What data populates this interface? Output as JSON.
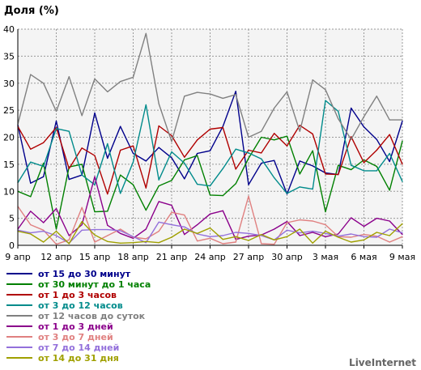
{
  "chart_data": {
    "type": "line",
    "title": "Доля (%)",
    "ylim": [
      0,
      40
    ],
    "yticks": [
      0,
      5,
      10,
      15,
      20,
      25,
      30,
      35,
      40
    ],
    "x_tick_labels": [
      {
        "i": 0,
        "label": "9 апр"
      },
      {
        "i": 3,
        "label": "12 апр"
      },
      {
        "i": 6,
        "label": "15 апр"
      },
      {
        "i": 9,
        "label": "18 апр"
      },
      {
        "i": 12,
        "label": "21 апр"
      },
      {
        "i": 15,
        "label": "24 апр"
      },
      {
        "i": 18,
        "label": "27 апр"
      },
      {
        "i": 21,
        "label": "30 апр"
      },
      {
        "i": 24,
        "label": "3 мая"
      },
      {
        "i": 27,
        "label": "6 мая"
      },
      {
        "i": 30,
        "label": "9 мая"
      }
    ],
    "grid": true,
    "legend_position": "bottom-left",
    "series": [
      {
        "name": "от 15 до 30 минут",
        "color": "#00008b",
        "values": [
          22.3,
          11.5,
          12.7,
          23.0,
          12.2,
          13.0,
          24.5,
          16.1,
          22.0,
          17.0,
          15.6,
          18.1,
          16.2,
          12.3,
          17.0,
          17.5,
          22.0,
          28.5,
          11.2,
          15.2,
          15.7,
          9.5,
          15.6,
          14.7,
          13.4,
          13.1,
          25.4,
          21.9,
          19.6,
          15.5,
          23.0
        ]
      },
      {
        "name": "от 30 минут до 1 часа",
        "color": "#008000",
        "values": [
          10.0,
          9.0,
          15.2,
          3.0,
          14.5,
          15.0,
          6.2,
          6.3,
          13.0,
          11.2,
          6.5,
          11.0,
          12.0,
          15.8,
          16.6,
          9.3,
          9.2,
          11.4,
          16.1,
          20.0,
          19.5,
          20.2,
          13.2,
          17.5,
          6.2,
          14.8,
          14.0,
          15.8,
          14.6,
          10.2,
          19.3
        ]
      },
      {
        "name": "от 1 до 3 часов",
        "color": "#b00000",
        "values": [
          22.0,
          17.8,
          19.0,
          21.8,
          14.2,
          18.0,
          16.6,
          9.5,
          17.6,
          18.4,
          10.6,
          22.1,
          20.3,
          16.3,
          19.5,
          21.5,
          21.8,
          14.1,
          17.6,
          17.1,
          20.7,
          18.4,
          22.2,
          20.6,
          13.2,
          13.1,
          20.1,
          15.3,
          17.6,
          20.5,
          15.0
        ]
      },
      {
        "name": "от 3 до 12 часов",
        "color": "#008b8b",
        "values": [
          11.6,
          15.4,
          14.6,
          21.6,
          21.1,
          13.0,
          11.2,
          18.8,
          9.6,
          15.4,
          26.0,
          12.1,
          17.3,
          15.2,
          11.3,
          11.0,
          14.2,
          17.8,
          17.1,
          16.0,
          12.5,
          9.6,
          10.8,
          10.4,
          26.8,
          24.8,
          14.8,
          13.8,
          13.8,
          17.0,
          11.8
        ]
      },
      {
        "name": "от 12 часов до суток",
        "color": "#808080",
        "values": [
          22.4,
          31.6,
          30.0,
          24.8,
          31.2,
          24.0,
          30.8,
          28.4,
          30.3,
          31.1,
          39.2,
          26.2,
          19.2,
          27.6,
          28.3,
          28.0,
          27.2,
          27.9,
          20.0,
          21.1,
          25.4,
          28.4,
          21.1,
          30.6,
          28.8,
          23.4,
          19.6,
          23.8,
          27.6,
          23.2,
          23.2
        ]
      },
      {
        "name": "от 1 до 3 дней",
        "color": "#8b008b",
        "values": [
          3.0,
          6.3,
          4.2,
          6.8,
          1.8,
          3.8,
          12.7,
          3.7,
          2.2,
          1.3,
          3.0,
          8.1,
          7.4,
          2.0,
          3.8,
          5.8,
          6.4,
          1.1,
          1.7,
          1.9,
          3.0,
          4.4,
          1.8,
          2.4,
          1.6,
          2.1,
          5.1,
          3.5,
          5.0,
          4.5,
          2.0
        ]
      },
      {
        "name": "от 3 до 7 дней",
        "color": "#e08080",
        "values": [
          7.2,
          3.8,
          2.8,
          0.2,
          1.0,
          7.0,
          0.6,
          1.8,
          3.0,
          1.5,
          1.2,
          2.6,
          6.1,
          5.6,
          0.8,
          1.3,
          0.3,
          0.6,
          9.1,
          0.3,
          0.2,
          4.2,
          4.7,
          4.5,
          3.8,
          1.6,
          1.5,
          2.0,
          1.7,
          0.6,
          1.6
        ]
      },
      {
        "name": "от 7 до 14 дней",
        "color": "#9370db",
        "values": [
          2.8,
          2.3,
          2.6,
          1.8,
          0.4,
          2.8,
          2.9,
          2.9,
          2.7,
          1.6,
          0.5,
          4.3,
          3.8,
          3.4,
          2.1,
          1.6,
          1.8,
          2.4,
          2.2,
          1.8,
          1.0,
          2.8,
          2.3,
          2.6,
          2.2,
          1.7,
          2.1,
          1.6,
          1.5,
          3.0,
          2.3
        ]
      },
      {
        "name": "от 14 до 31 дня",
        "color": "#a0a000",
        "values": [
          2.6,
          2.1,
          0.6,
          2.6,
          0.3,
          4.4,
          1.9,
          0.7,
          0.4,
          0.5,
          0.7,
          0.5,
          1.5,
          3.0,
          2.2,
          3.2,
          1.1,
          1.6,
          0.9,
          2.0,
          1.0,
          1.6,
          3.0,
          0.4,
          2.6,
          1.5,
          0.6,
          1.0,
          2.4,
          1.8,
          4.0
        ]
      }
    ]
  },
  "watermark": "LiveInternet"
}
